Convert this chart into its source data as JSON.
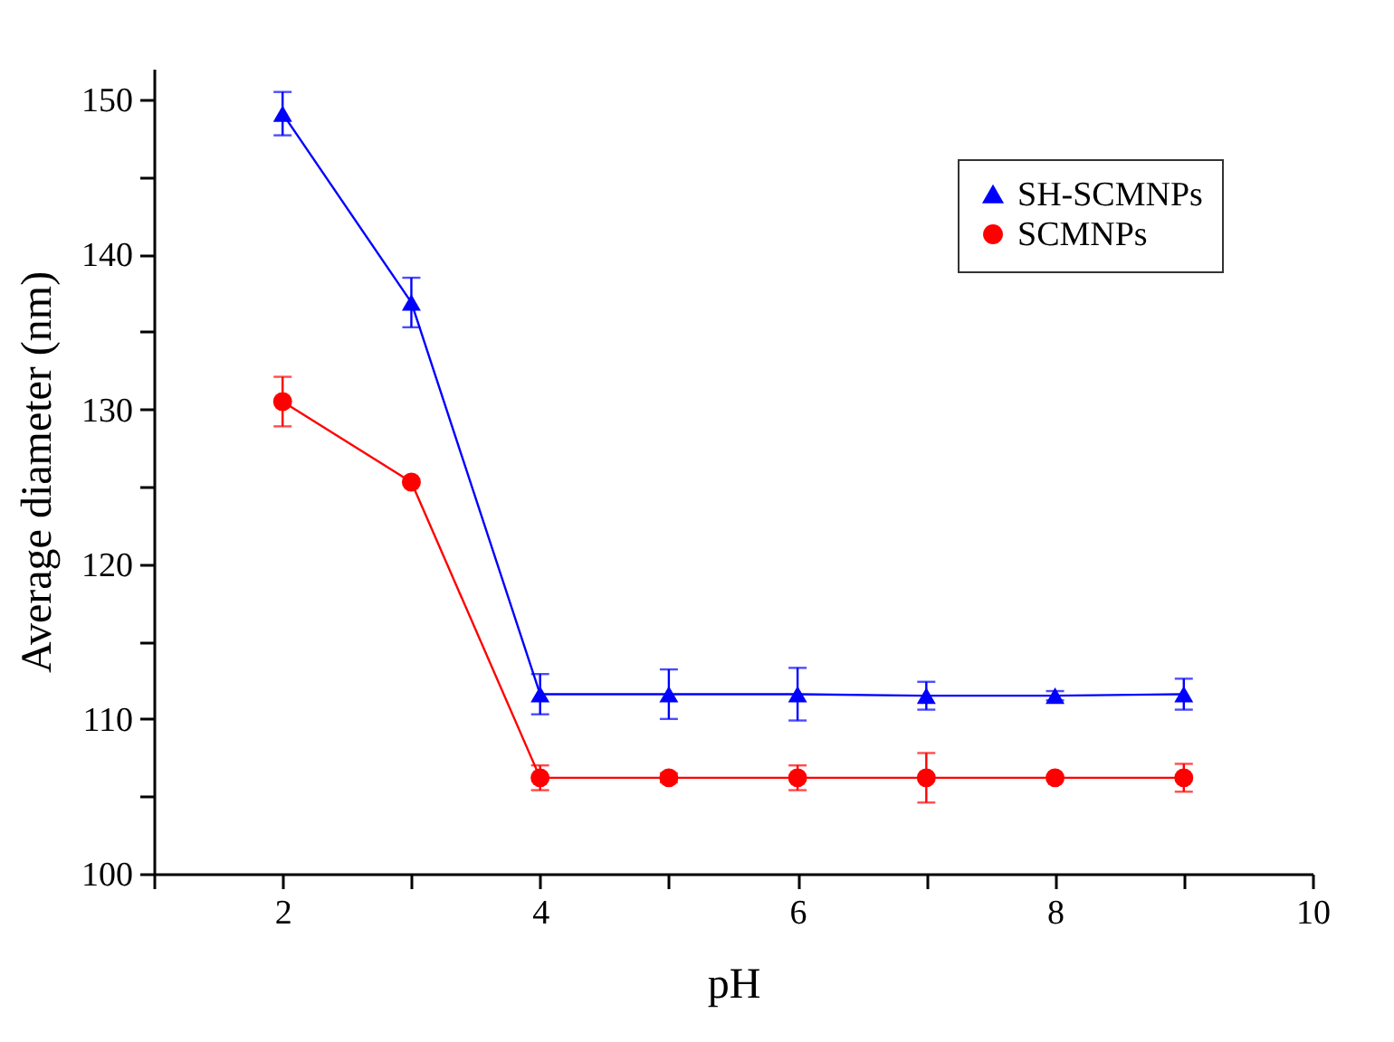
{
  "chart_data": {
    "type": "line",
    "xlabel": "pH",
    "ylabel": "Average diameter (nm)",
    "x": [
      2,
      3,
      4,
      5,
      6,
      7,
      8,
      9
    ],
    "series": [
      {
        "name": "SH-SCMNPs",
        "color": "#0000ff",
        "marker": "triangle",
        "values": [
          149.1,
          136.9,
          111.6,
          111.6,
          111.6,
          111.5,
          111.5,
          111.6
        ],
        "errors": [
          1.4,
          1.6,
          1.3,
          1.6,
          1.7,
          0.9,
          0.3,
          1.0
        ]
      },
      {
        "name": "SCMNPs",
        "color": "#ff0000",
        "marker": "circle",
        "values": [
          130.5,
          125.3,
          106.2,
          106.2,
          106.2,
          106.2,
          106.2,
          106.2
        ],
        "errors": [
          1.6,
          null,
          0.8,
          0.3,
          0.8,
          1.6,
          null,
          0.9
        ]
      }
    ],
    "xlim": [
      1,
      10
    ],
    "xticks": [
      {
        "value": 1,
        "label": null
      },
      2,
      {
        "value": 3,
        "label": null
      },
      4,
      {
        "value": 5,
        "label": null
      },
      6,
      {
        "value": 7,
        "label": null
      },
      8,
      {
        "value": 9,
        "label": null
      },
      10
    ],
    "ylim": [
      100,
      152
    ],
    "yticks": [
      100,
      {
        "value": 105,
        "label": null
      },
      110,
      {
        "value": 115,
        "label": null
      },
      120,
      {
        "value": 125,
        "label": null
      },
      130,
      {
        "value": 135,
        "label": null
      },
      140,
      {
        "value": 145,
        "label": null
      },
      150
    ],
    "grid": false,
    "legend": "top right",
    "line_style": "solid"
  }
}
